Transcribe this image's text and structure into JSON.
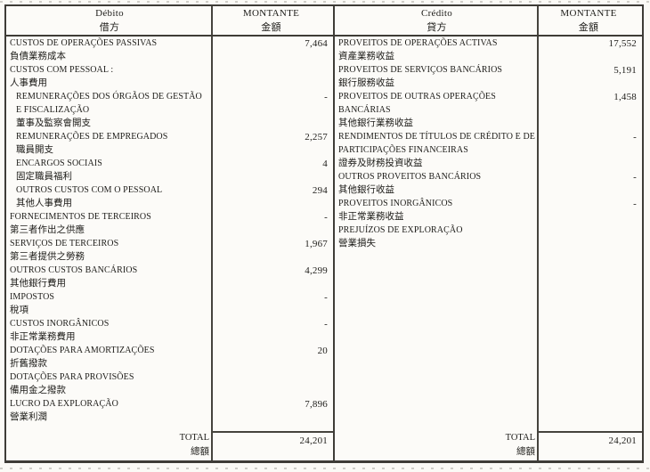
{
  "table": {
    "debit": {
      "header": {
        "title_pt": "Débito",
        "title_cn": "借方",
        "amount_pt": "MONTANTE",
        "amount_cn": "金額"
      },
      "rows": [
        {
          "pt": "CUSTOS DE OPERAÇÕES PASSIVAS",
          "cn": "負債業務成本",
          "amount": "7,464",
          "indent": false
        },
        {
          "pt": "CUSTOS COM PESSOAL :",
          "cn": "人事費用",
          "amount": "",
          "indent": false
        },
        {
          "pt": "REMUNERAÇÕES DOS ÓRGÃOS DE GESTÃO E FISCALIZAÇÃO",
          "cn": "董事及監察會開支",
          "amount": "-",
          "indent": true
        },
        {
          "pt": "REMUNERAÇÕES DE EMPREGADOS",
          "cn": "職員開支",
          "amount": "2,257",
          "indent": true
        },
        {
          "pt": "ENCARGOS SOCIAIS",
          "cn": "固定職員福利",
          "amount": "4",
          "indent": true
        },
        {
          "pt": "OUTROS CUSTOS COM O PESSOAL",
          "cn": "其他人事費用",
          "amount": "294",
          "indent": true
        },
        {
          "pt": "FORNECIMENTOS DE TERCEIROS",
          "cn": "第三者作出之供應",
          "amount": "-",
          "indent": false
        },
        {
          "pt": "SERVIÇOS DE TERCEIROS",
          "cn": "第三者提供之勞務",
          "amount": "1,967",
          "indent": false
        },
        {
          "pt": "OUTROS CUSTOS BANCÁRIOS",
          "cn": "其他銀行費用",
          "amount": "4,299",
          "indent": false
        },
        {
          "pt": "IMPOSTOS",
          "cn": "稅項",
          "amount": "-",
          "indent": false
        },
        {
          "pt": "CUSTOS INORGÂNICOS",
          "cn": "非正常業務費用",
          "amount": "-",
          "indent": false
        },
        {
          "pt": "DOTAÇÕES PARA AMORTIZAÇÕES",
          "cn": "折舊撥款",
          "amount": "20",
          "indent": false
        },
        {
          "pt": "DOTAÇÕES PARA PROVISÕES",
          "cn": "備用金之撥款",
          "amount": "",
          "indent": false
        },
        {
          "pt": "LUCRO DA EXPLORAÇÃO",
          "cn": "營業利潤",
          "amount": "7,896",
          "indent": false
        }
      ],
      "total": {
        "pt": "TOTAL",
        "cn": "總額",
        "amount": "24,201"
      }
    },
    "credit": {
      "header": {
        "title_pt": "Crédito",
        "title_cn": "貸方",
        "amount_pt": "MONTANTE",
        "amount_cn": "金額"
      },
      "rows": [
        {
          "pt": "PROVEITOS DE OPERAÇÕES ACTIVAS",
          "cn": "資產業務收益",
          "amount": "17,552",
          "indent": false
        },
        {
          "pt": "PROVEITOS DE SERVIÇOS BANCÁRIOS",
          "cn": "銀行服務收益",
          "amount": "5,191",
          "indent": false
        },
        {
          "pt": "PROVEITOS DE OUTRAS OPERAÇÕES BANCÁRIAS",
          "cn": "其他銀行業務收益",
          "amount": "1,458",
          "indent": false
        },
        {
          "pt": "RENDIMENTOS DE TÍTULOS DE CRÉDITO E DE PARTICIPAÇÕES FINANCEIRAS",
          "cn": "證券及財務投資收益",
          "amount": "-",
          "indent": false
        },
        {
          "pt": "OUTROS PROVEITOS BANCÁRIOS",
          "cn": "其他銀行收益",
          "amount": "-",
          "indent": false
        },
        {
          "pt": "PROVEITOS INORGÂNICOS",
          "cn": "非正常業務收益",
          "amount": "-",
          "indent": false
        },
        {
          "pt": "PREJUÍZOS DE EXPLORAÇÃO",
          "cn": "營業損失",
          "amount": "",
          "indent": false
        }
      ],
      "total": {
        "pt": "TOTAL",
        "cn": "總額",
        "amount": "24,201"
      }
    }
  }
}
